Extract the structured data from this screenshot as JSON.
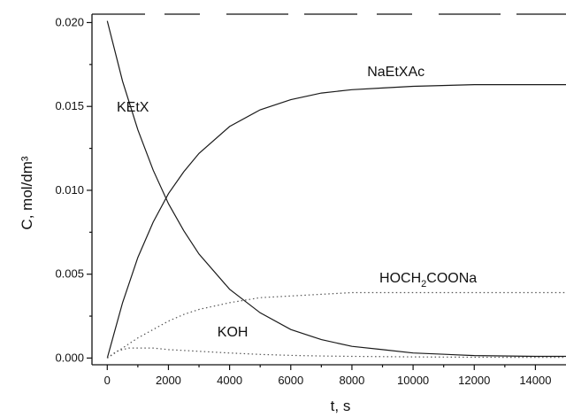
{
  "chart_data": {
    "type": "line",
    "xlabel": "t, s",
    "ylabel": "C, mol/dm³",
    "xlim": [
      -500,
      15000
    ],
    "ylim": [
      -0.0004,
      0.0205
    ],
    "x_ticks": [
      0,
      2000,
      4000,
      6000,
      8000,
      10000,
      12000,
      14000
    ],
    "x_tick_labels": [
      "0",
      "2000",
      "4000",
      "6000",
      "8000",
      "10000",
      "12000",
      "14000"
    ],
    "y_ticks": [
      0,
      0.005,
      0.01,
      0.015,
      0.02
    ],
    "y_tick_labels": [
      "0.000",
      "0.005",
      "0.010",
      "0.015",
      "0.020"
    ],
    "grid": false,
    "series": [
      {
        "name": "KEtX",
        "style": "solid",
        "x": [
          0,
          500,
          1000,
          1500,
          2000,
          2500,
          3000,
          4000,
          5000,
          6000,
          7000,
          8000,
          9000,
          10000,
          12000,
          14000,
          15000
        ],
        "y": [
          0.0201,
          0.0165,
          0.0136,
          0.0112,
          0.0092,
          0.0076,
          0.0062,
          0.0041,
          0.0027,
          0.0017,
          0.0011,
          0.0007,
          0.0005,
          0.0003,
          0.00015,
          0.0001,
          0.0001
        ]
      },
      {
        "name": "NaEtXAc",
        "style": "solid",
        "x": [
          0,
          500,
          1000,
          1500,
          2000,
          2500,
          3000,
          4000,
          5000,
          6000,
          7000,
          8000,
          9000,
          10000,
          12000,
          14000,
          15000
        ],
        "y": [
          0.0,
          0.0033,
          0.006,
          0.0081,
          0.0098,
          0.0111,
          0.0122,
          0.0138,
          0.0148,
          0.0154,
          0.0158,
          0.016,
          0.0161,
          0.0162,
          0.0163,
          0.0163,
          0.0163
        ]
      },
      {
        "name": "HOCH₂COONa",
        "label_main": "HOCH",
        "label_sub": "2",
        "label_rest": "COONa",
        "style": "dotted",
        "x": [
          0,
          500,
          1000,
          1500,
          2000,
          2500,
          3000,
          4000,
          5000,
          6000,
          7000,
          8000,
          9000,
          10000,
          12000,
          14000,
          15000
        ],
        "y": [
          0.0,
          0.0006,
          0.0012,
          0.0017,
          0.0022,
          0.0026,
          0.0029,
          0.0033,
          0.0036,
          0.0037,
          0.0038,
          0.0039,
          0.0039,
          0.0039,
          0.0039,
          0.0039,
          0.0039
        ]
      },
      {
        "name": "KOH",
        "style": "dotted",
        "x": [
          0,
          300,
          700,
          1000,
          1500,
          2000,
          3000,
          4000,
          5000,
          6000,
          7000,
          8000,
          10000,
          12000,
          14000,
          15000
        ],
        "y": [
          0.0,
          0.0004,
          0.0006,
          0.0006,
          0.0006,
          0.0005,
          0.0004,
          0.0003,
          0.00022,
          0.00016,
          0.00012,
          0.0001,
          7e-05,
          5e-05,
          4e-05,
          4e-05
        ]
      }
    ],
    "annotations": [
      {
        "series": "KEtX",
        "text": "KEtX",
        "x": 310,
        "y": 0.0147
      },
      {
        "series": "NaEtXAc",
        "text": "NaEtXAc",
        "x": 8500,
        "y": 0.0168
      },
      {
        "series": "HOCH₂COONa",
        "text": "HOCH₂COONa",
        "x": 8900,
        "y": 0.0045
      },
      {
        "series": "KOH",
        "text": "KOH",
        "x": 3600,
        "y": 0.0013
      }
    ]
  }
}
